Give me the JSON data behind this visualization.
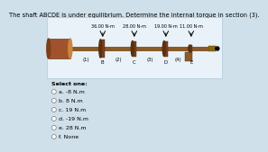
{
  "title": "The shaft ABCDE is under equilibrium. Determine the internal torque in section (3).",
  "torques": [
    "36.00 N-m",
    "28.00 N-m",
    "19.00 N-m",
    "11.00 N-m"
  ],
  "sections": [
    "(1)",
    "(2)",
    "(3)",
    "(4)"
  ],
  "point_labels": [
    "B",
    "C",
    "D",
    "E"
  ],
  "select_one": "Select one:",
  "options": [
    "a. -8 N.m",
    "b. 8 N.m",
    "c. 19 N.m",
    "d. -19 N.m",
    "e. 28 N.m",
    "f. None"
  ],
  "bg_color": "#cfe0ea",
  "box_color": "#e8f2f8",
  "shaft_color": "#8B5A2B",
  "disk_color": "#7B4020",
  "motor_color": "#A0522D",
  "title_fontsize": 4.8,
  "option_fontsize": 4.5,
  "label_fontsize": 3.8
}
